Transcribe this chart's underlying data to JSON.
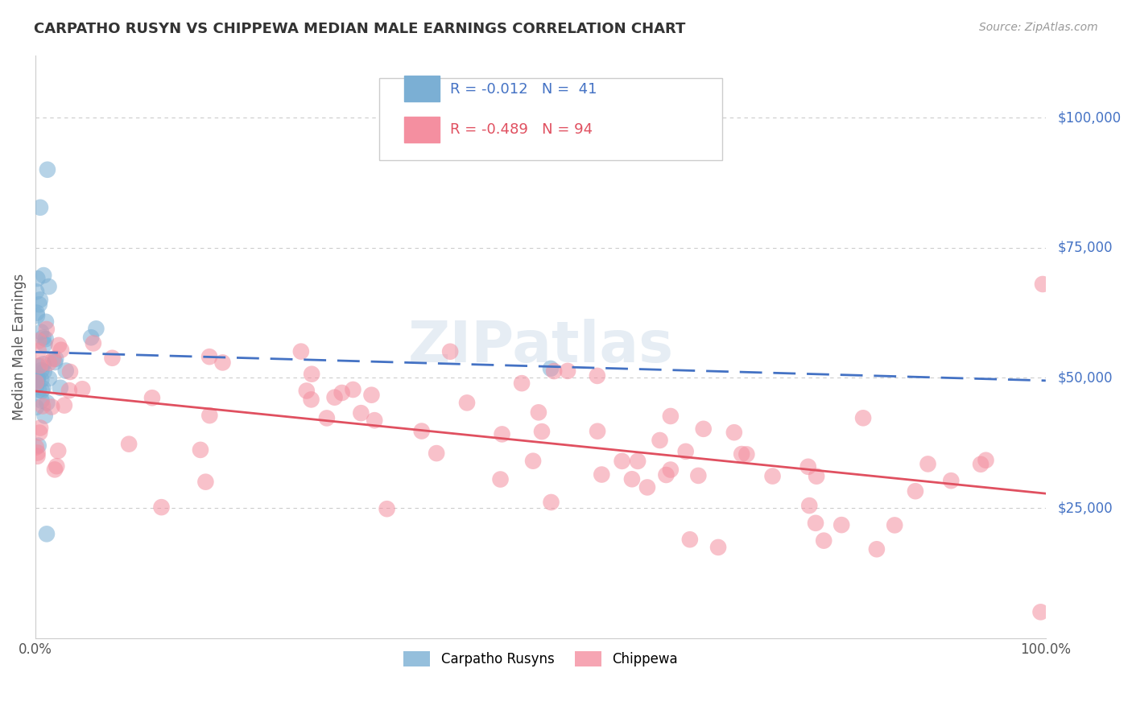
{
  "title": "CARPATHO RUSYN VS CHIPPEWA MEDIAN MALE EARNINGS CORRELATION CHART",
  "source": "Source: ZipAtlas.com",
  "ylabel": "Median Male Earnings",
  "ytick_labels": [
    "$25,000",
    "$50,000",
    "$75,000",
    "$100,000"
  ],
  "ytick_values": [
    25000,
    50000,
    75000,
    100000
  ],
  "ylim": [
    0,
    112000
  ],
  "xlim": [
    0,
    1.0
  ],
  "legend_label1": "Carpatho Rusyns",
  "legend_label2": "Chippewa",
  "blue_color": "#7bafd4",
  "pink_color": "#f48fa0",
  "blue_line_color": "#4472c4",
  "pink_line_color": "#e05060",
  "axis_label_color": "#4472c4",
  "blue_R": -0.012,
  "blue_N": 41,
  "pink_R": -0.489,
  "pink_N": 94
}
